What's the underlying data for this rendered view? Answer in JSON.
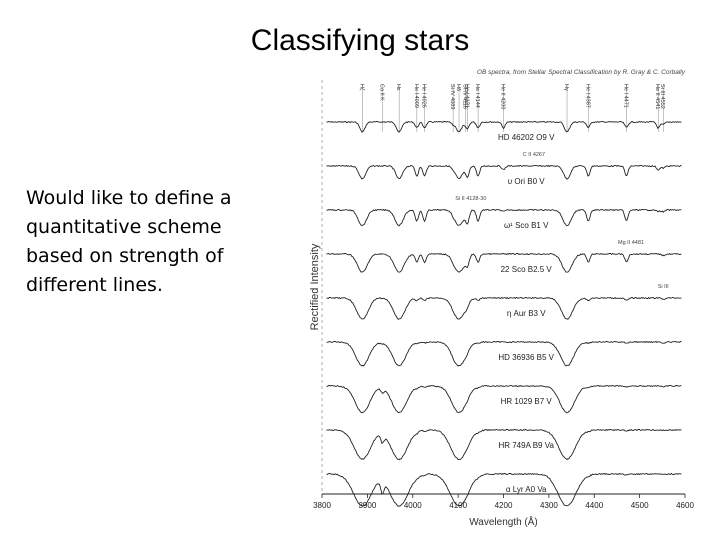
{
  "slide": {
    "title": "Classifying stars",
    "body_lines": [
      "Would like to define a",
      "quantitative scheme",
      "based on strength of",
      "different lines."
    ]
  },
  "chart_data": {
    "type": "line",
    "title": "OB spectra, from Stellar Spectral Classification by R. Gray & C. Corbally",
    "xlabel": "Wavelength (Å)",
    "ylabel": "Rectified Intensity",
    "xlim": [
      3800,
      4600
    ],
    "x_ticks": [
      3800,
      3900,
      4000,
      4100,
      4200,
      4300,
      4400,
      4500,
      4600
    ],
    "grid": false,
    "series": [
      {
        "name": "HD 46202  O9 V"
      },
      {
        "name": "υ Ori  B0 V"
      },
      {
        "name": "ω¹ Sco  B1 V"
      },
      {
        "name": "22 Sco  B2.5 V"
      },
      {
        "name": "η Aur  B3 V"
      },
      {
        "name": "HD 36936  B5 V"
      },
      {
        "name": "HR 1029  B7 V"
      },
      {
        "name": "HR 749A  B9 Va"
      },
      {
        "name": "α Lyr  A0 Va"
      }
    ],
    "absorption_lines": [
      {
        "x": 3889,
        "label": "Hζ"
      },
      {
        "x": 3933,
        "label": "Ca II K"
      },
      {
        "x": 3970,
        "label": "Hε"
      },
      {
        "x": 4009,
        "label": "He I 4009"
      },
      {
        "x": 4026,
        "label": "He I 4026"
      },
      {
        "x": 4089,
        "label": "Si IV 4089"
      },
      {
        "x": 4102,
        "label": "Hδ"
      },
      {
        "x": 4116,
        "label": "Si IV 4116"
      },
      {
        "x": 4121,
        "label": "He I 4121"
      },
      {
        "x": 4144,
        "label": "He I 4144"
      },
      {
        "x": 4200,
        "label": "He II 4200"
      },
      {
        "x": 4340,
        "label": "Hγ"
      },
      {
        "x": 4387,
        "label": "He I 4387"
      },
      {
        "x": 4471,
        "label": "He I 4471"
      },
      {
        "x": 4541,
        "label": "He II 4541"
      },
      {
        "x": 4552,
        "label": "Si III 4552"
      }
    ],
    "annotations": [
      {
        "x": 4267,
        "text": "C II 4267"
      },
      {
        "x": 4128,
        "text": "Si II 4128-30"
      },
      {
        "x": 4481,
        "text": "Mg II 4481"
      },
      {
        "x": 4552,
        "text": "Si III"
      }
    ]
  }
}
